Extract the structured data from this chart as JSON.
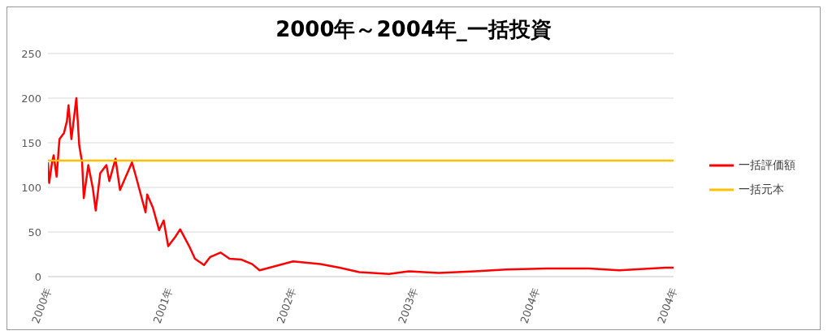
{
  "chart_data": {
    "type": "line",
    "title": "2000年～2004年_一括投資",
    "xlim": [
      "2000-10-31",
      "2004-12-28"
    ],
    "xticks": [
      {
        "value": "2000-10-31",
        "label": "2000年"
      },
      {
        "value": "2001-08-22",
        "label": "2001年"
      },
      {
        "value": "2002-06-18",
        "label": "2002年"
      },
      {
        "value": "2003-04-09",
        "label": "2003年"
      },
      {
        "value": "2004-01-30",
        "label": "2004年"
      },
      {
        "value": "2004-12-28",
        "label": "2004年"
      }
    ],
    "ylim": [
      0,
      250
    ],
    "yticks": [
      0,
      50,
      100,
      150,
      200,
      250
    ],
    "grid": "y",
    "legend": "right",
    "marker": "none",
    "line_style": "solid",
    "series": [
      {
        "name": "一括評価額",
        "color": "#ff0000",
        "x": [
          "2000-10-31",
          "2000-11-03",
          "2000-11-10",
          "2000-11-14",
          "2000-11-21",
          "2000-11-28",
          "2000-12-09",
          "2000-12-16",
          "2000-12-20",
          "2000-12-27",
          "2001-01-08",
          "2001-01-15",
          "2001-01-22",
          "2001-01-26",
          "2001-02-06",
          "2001-02-17",
          "2001-02-24",
          "2001-03-07",
          "2001-03-22",
          "2001-03-29",
          "2001-04-13",
          "2001-04-24",
          "2001-05-23",
          "2001-06-03",
          "2001-06-25",
          "2001-06-29",
          "2001-07-13",
          "2001-07-28",
          "2001-08-08",
          "2001-08-19",
          "2001-09-06",
          "2001-09-17",
          "2001-10-09",
          "2001-10-23",
          "2001-11-14",
          "2001-11-29",
          "2001-12-24",
          "2002-01-15",
          "2002-02-13",
          "2002-03-11",
          "2002-03-29",
          "2002-06-18",
          "2002-08-23",
          "2002-10-09",
          "2002-11-26",
          "2003-02-06",
          "2003-03-26",
          "2003-06-07",
          "2003-09-02",
          "2003-11-18",
          "2004-02-24",
          "2004-06-06",
          "2004-08-18",
          "2004-12-09",
          "2004-12-28"
        ],
        "values": [
          128,
          105,
          128,
          136,
          112,
          154,
          161,
          174,
          192,
          154,
          200,
          147,
          128,
          88,
          125,
          99,
          74,
          116,
          125,
          107,
          132,
          97,
          128,
          110,
          72,
          92,
          77,
          52,
          63,
          34,
          45,
          53,
          34,
          20,
          13,
          22,
          27,
          20,
          19,
          14,
          7,
          17,
          14,
          10,
          5,
          3,
          6,
          4,
          6,
          8,
          9,
          9,
          7,
          10,
          10
        ]
      },
      {
        "name": "一括元本",
        "color": "#ffc000",
        "x": [
          "2000-10-31",
          "2004-12-28"
        ],
        "values": [
          130,
          130
        ]
      }
    ]
  }
}
